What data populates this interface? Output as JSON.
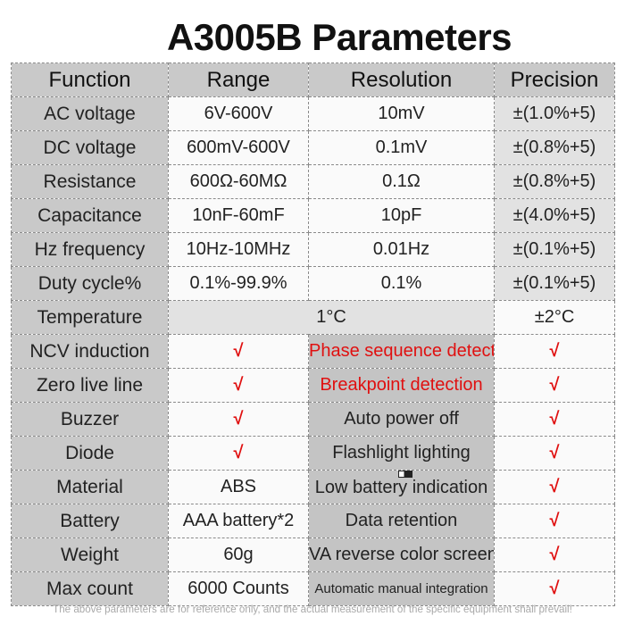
{
  "title": "A3005B Parameters",
  "table": {
    "header": [
      "Function",
      "Range",
      "Resolution",
      "Precision"
    ],
    "rows": [
      [
        "AC voltage",
        "6V-600V",
        "10mV",
        "±(1.0%+5)"
      ],
      [
        "DC voltage",
        "600mV-600V",
        "0.1mV",
        "±(0.8%+5)"
      ],
      [
        "Resistance",
        "600Ω-60MΩ",
        "0.1Ω",
        "±(0.8%+5)"
      ],
      [
        "Capacitance",
        "10nF-60mF",
        "10pF",
        "±(4.0%+5)"
      ],
      [
        "Hz frequency",
        "10Hz-10MHz",
        "0.01Hz",
        "±(0.1%+5)"
      ],
      [
        "Duty cycle%",
        "0.1%-99.9%",
        "0.1%",
        "±(0.1%+5)"
      ],
      [
        "Temperature",
        "1°C",
        "±2°C"
      ],
      [
        "NCV induction",
        "√",
        "Phase sequence detection",
        "√"
      ],
      [
        "Zero live line",
        "√",
        "Breakpoint detection",
        "√"
      ],
      [
        "Buzzer",
        "√",
        "Auto power off",
        "√"
      ],
      [
        "Diode",
        "√",
        "Flashlight lighting",
        "√"
      ],
      [
        "Material",
        "ABS",
        "Low battery indication",
        "√"
      ],
      [
        "Battery",
        "AAA battery*2",
        "Data retention",
        "√"
      ],
      [
        "Weight",
        "60g",
        "VA reverse color screen",
        "√"
      ],
      [
        "Max count",
        "6000 Counts",
        "Automatic manual integration",
        "√"
      ]
    ]
  },
  "footer": "The above parameters are for reference only, and the actual measurement of the specific equipment shall prevail!"
}
